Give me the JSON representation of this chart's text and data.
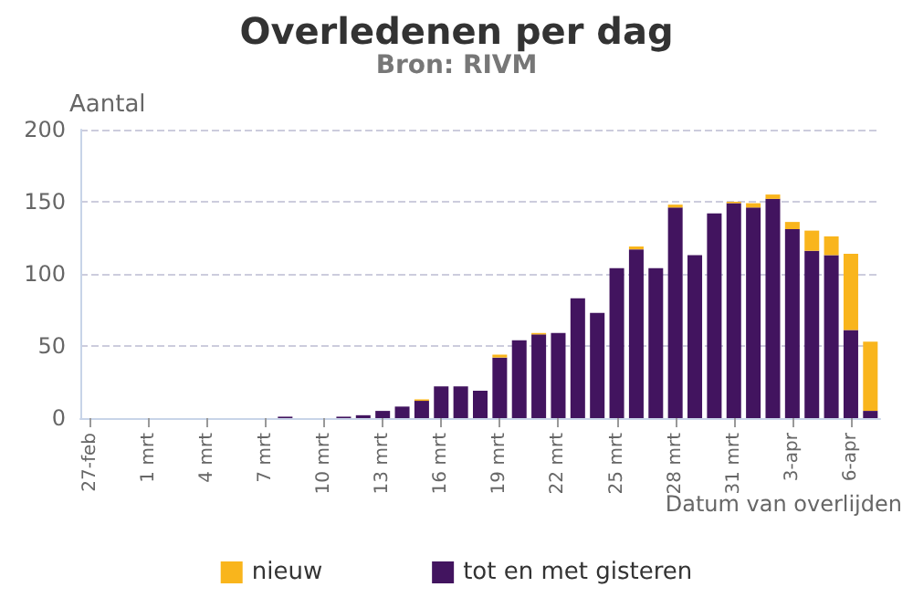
{
  "chart_data": {
    "type": "bar",
    "title": "Overledenen per dag",
    "subtitle": "Bron: RIVM",
    "xlabel": "Datum van overlijden",
    "ylabel": "Aantal",
    "categories": [
      "27-feb",
      null,
      null,
      "1 mrt",
      null,
      null,
      "4 mrt",
      null,
      null,
      "7 mrt",
      null,
      null,
      "10 mrt",
      null,
      null,
      "13 mrt",
      null,
      null,
      "16 mrt",
      null,
      null,
      "19 mrt",
      null,
      null,
      "22 mrt",
      null,
      null,
      "25 mrt",
      null,
      null,
      "28 mrt",
      null,
      null,
      "31 mrt",
      null,
      null,
      "3-apr",
      null,
      null,
      "6-apr",
      null
    ],
    "stacked": true,
    "series": [
      {
        "name": "tot en met gisteren",
        "color": "#42145f",
        "values": [
          0,
          0,
          0,
          0,
          0,
          0,
          0,
          0,
          0,
          0,
          1,
          0,
          0,
          1,
          2,
          5,
          8,
          12,
          22,
          22,
          19,
          42,
          54,
          58,
          59,
          83,
          73,
          104,
          117,
          104,
          146,
          113,
          142,
          149,
          146,
          152,
          131,
          116,
          113,
          61,
          5
        ]
      },
      {
        "name": "nieuw",
        "color": "#f9b51c",
        "values": [
          0,
          0,
          0,
          0,
          0,
          0,
          0,
          0,
          0,
          0,
          0,
          0,
          0,
          0,
          0,
          0,
          0,
          1,
          0,
          0,
          0,
          2,
          0,
          1,
          0,
          0,
          0,
          0,
          2,
          0,
          2,
          0,
          0,
          1,
          3,
          3,
          5,
          14,
          13,
          53,
          48
        ]
      }
    ],
    "ylim": [
      0,
      200
    ],
    "yticks": [
      0,
      50,
      100,
      150,
      200
    ],
    "grid": "y",
    "legend": "bottom"
  }
}
